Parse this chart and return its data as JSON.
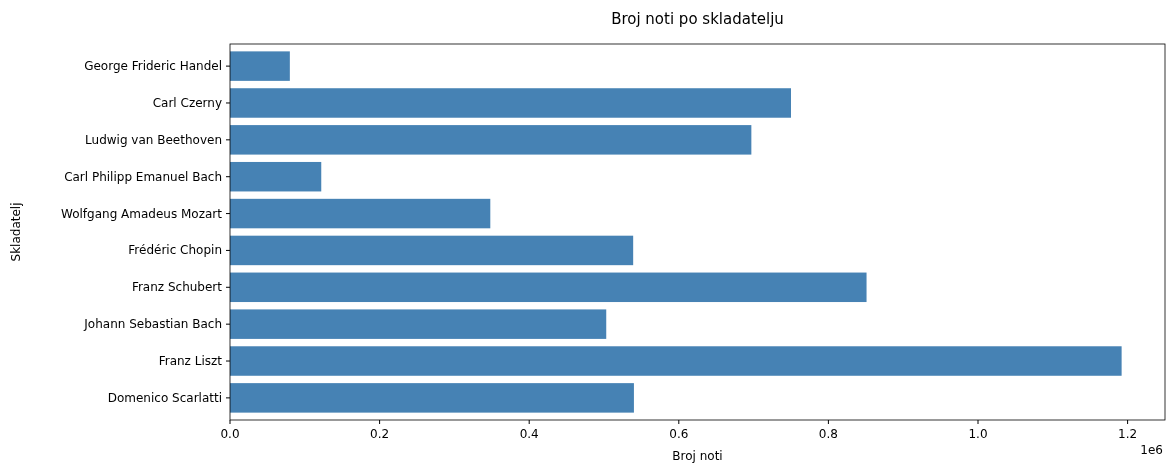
{
  "chart_data": {
    "type": "bar",
    "orientation": "horizontal",
    "title": "Broj noti po skladatelju",
    "xlabel": "Broj noti",
    "ylabel": "Skladatelj",
    "categories": [
      "George Frideric Handel",
      "Carl Czerny",
      "Ludwig van Beethoven",
      "Carl Philipp Emanuel Bach",
      "Wolfgang Amadeus Mozart",
      "Frédéric Chopin",
      "Franz Schubert",
      "Johann Sebastian Bach",
      "Franz Liszt",
      "Domenico Scarlatti"
    ],
    "values": [
      0.08,
      0.75,
      0.697,
      0.122,
      0.348,
      0.539,
      0.851,
      0.503,
      1.192,
      0.54
    ],
    "color": "#4682b4",
    "xlim": [
      0,
      1.25
    ],
    "xticks": [
      {
        "value": 0,
        "label": "0.0"
      },
      0.2,
      0.4,
      0.6,
      0.8,
      {
        "value": 1,
        "label": "1.0"
      },
      1.2
    ],
    "annotations": [
      "1e6"
    ]
  }
}
